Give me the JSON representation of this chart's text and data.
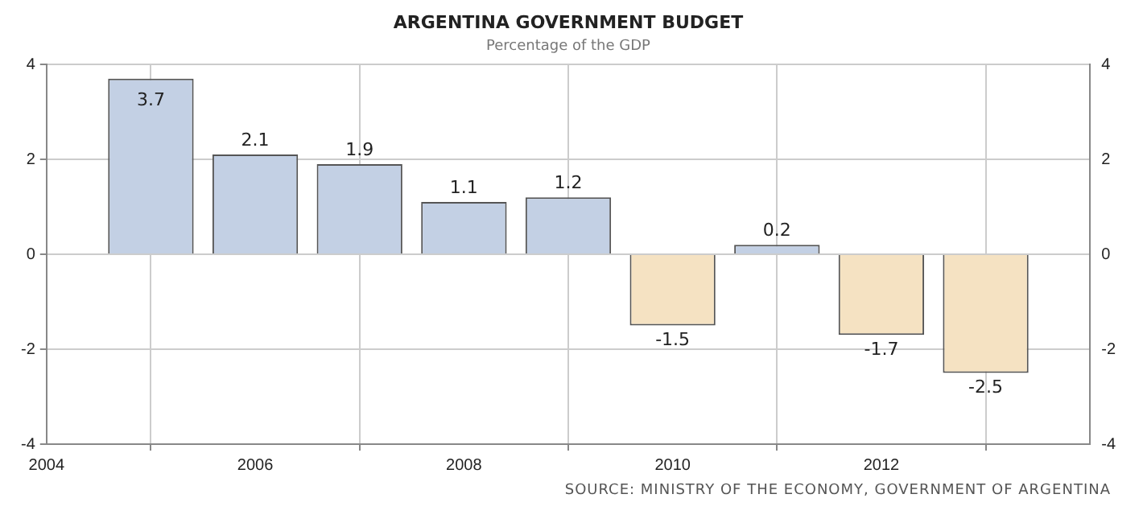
{
  "chart_data": {
    "type": "bar",
    "title": "ARGENTINA GOVERNMENT BUDGET",
    "subtitle": "Percentage of the GDP",
    "x": [
      2005,
      2006,
      2007,
      2008,
      2009,
      2010,
      2011,
      2012,
      2013
    ],
    "values": [
      3.7,
      2.1,
      1.9,
      1.1,
      1.2,
      -1.5,
      0.2,
      -1.7,
      -2.5
    ],
    "colors": [
      "#c3d0e4",
      "#c3d0e4",
      "#c3d0e4",
      "#c3d0e4",
      "#c3d0e4",
      "#f5e2c2",
      "#c3d0e4",
      "#f5e2c2",
      "#f5e2c2"
    ],
    "xlim": [
      2004,
      2014
    ],
    "xticks": [
      2004,
      2006,
      2008,
      2010,
      2012,
      {
        "value": 2014,
        "label": null
      }
    ],
    "ylim": [
      -4,
      4
    ],
    "yticks": [
      -4,
      -2,
      0,
      2,
      4
    ],
    "y2lim": [
      -4,
      4
    ],
    "y2ticks": [
      -4,
      -2,
      0,
      2,
      4
    ],
    "grid": true,
    "data_labels": true,
    "legend": false,
    "annotations": [
      "SOURCE: MINISTRY OF THE ECONOMY, GOVERNMENT OF ARGENTINA"
    ]
  }
}
